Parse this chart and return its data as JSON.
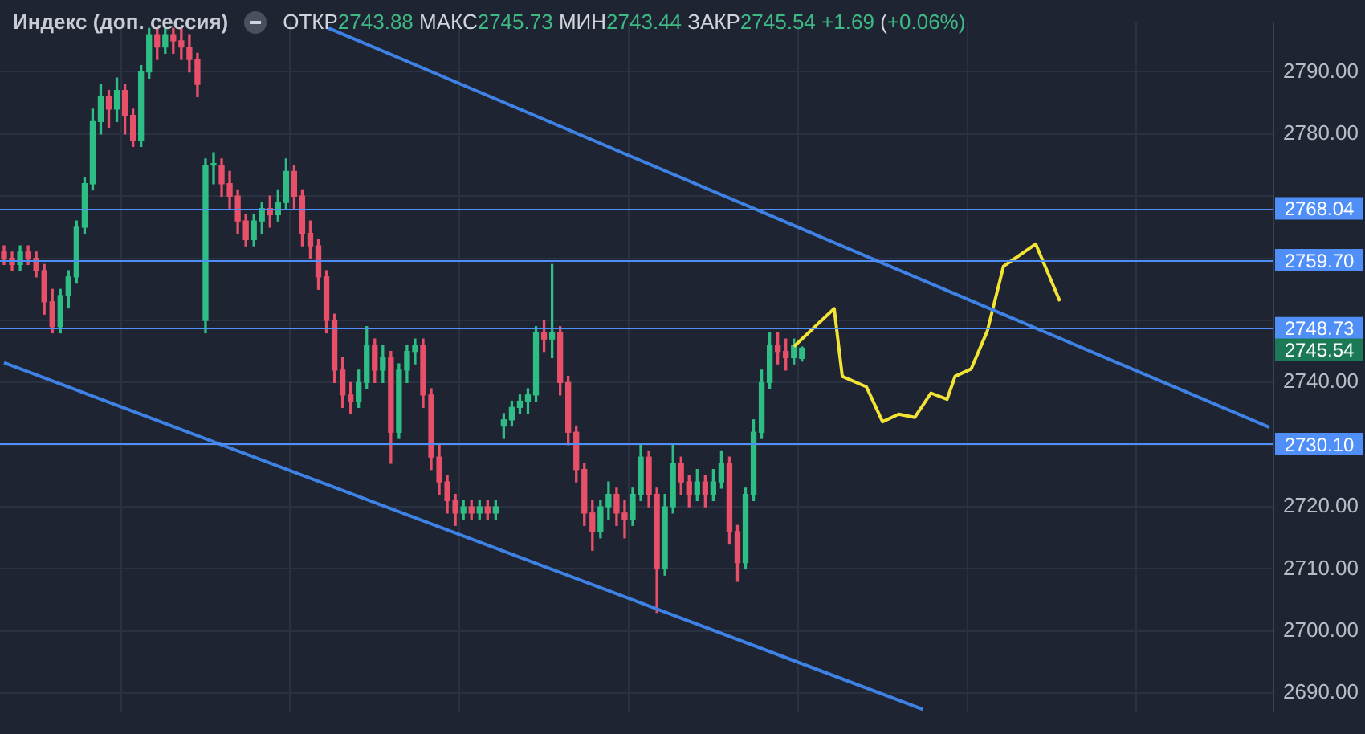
{
  "chart_data": {
    "type": "candlestick",
    "title": "Индекс (доп. сессия)",
    "subtitle": "ОТКР2743.88 МАКС2745.73 МИН2743.44 ЗАКР2745.54 +1.69 (+0.06%)",
    "categories": [
      null,
      null,
      null,
      null,
      null,
      null,
      null,
      null,
      null,
      null,
      null,
      null,
      null,
      null,
      null,
      null,
      null,
      null,
      null,
      null,
      null,
      null,
      null,
      null,
      null,
      null,
      null,
      null,
      null,
      null,
      null,
      null,
      null,
      null,
      null,
      null,
      null,
      null,
      null,
      null,
      null,
      null,
      null,
      null,
      null,
      null,
      null,
      null,
      null,
      null,
      null,
      null,
      null,
      null,
      null,
      null,
      null,
      null,
      null,
      null,
      null,
      null,
      null,
      null,
      null,
      null,
      null,
      null,
      null,
      null,
      null,
      null,
      null,
      null,
      null,
      null,
      null,
      null,
      null,
      null,
      null,
      null,
      null,
      null,
      null,
      null,
      null,
      null,
      null,
      null,
      null,
      null,
      null,
      null,
      null,
      null,
      null,
      null,
      null,
      null,
      null,
      null,
      null,
      null,
      null,
      null,
      null,
      null,
      null,
      null,
      null,
      null,
      null,
      null,
      null,
      null,
      null,
      null,
      null,
      null,
      null,
      null,
      null,
      null,
      null,
      null,
      null,
      null,
      null,
      null,
      null,
      null,
      null,
      null,
      null,
      null,
      null,
      null,
      null,
      null,
      null,
      null,
      null,
      null,
      null,
      null,
      null,
      null,
      null,
      null,
      null,
      null,
      null,
      null,
      null,
      null,
      null,
      null
    ],
    "ohlc": [
      [
        2761,
        2762,
        2759,
        2760
      ],
      [
        2760,
        2761,
        2758,
        2759
      ],
      [
        2759,
        2762,
        2758,
        2761
      ],
      [
        2761,
        2762,
        2759,
        2760
      ],
      [
        2760,
        2761,
        2757,
        2758
      ],
      [
        2758,
        2759,
        2751,
        2753
      ],
      [
        2753,
        2755,
        2748,
        2749
      ],
      [
        2749,
        2755,
        2748,
        2754
      ],
      [
        2754,
        2758,
        2752,
        2757
      ],
      [
        2757,
        2766,
        2756,
        2765
      ],
      [
        2765,
        2773,
        2764,
        2772
      ],
      [
        2772,
        2784,
        2771,
        2782
      ],
      [
        2782,
        2788,
        2780,
        2786
      ],
      [
        2786,
        2787,
        2781,
        2784
      ],
      [
        2784,
        2789,
        2782,
        2787
      ],
      [
        2787,
        2788,
        2780,
        2783
      ],
      [
        2783,
        2784,
        2778,
        2779
      ],
      [
        2779,
        2791,
        2778,
        2790
      ],
      [
        2790,
        2797,
        2789,
        2796
      ],
      [
        2796,
        2797,
        2792,
        2794
      ],
      [
        2794,
        2797,
        2793,
        2796
      ],
      [
        2796,
        2797,
        2793,
        2795
      ],
      [
        2795,
        2797,
        2792,
        2794
      ],
      [
        2794,
        2796,
        2790,
        2792
      ],
      [
        2792,
        2793,
        2786,
        2788
      ],
      [
        2750,
        2776,
        2748,
        2775
      ],
      [
        2775,
        2777,
        2772,
        2775
      ],
      [
        2775,
        2776,
        2770,
        2772
      ],
      [
        2772,
        2774,
        2768,
        2770
      ],
      [
        2770,
        2771,
        2764,
        2766
      ],
      [
        2766,
        2767,
        2762,
        2763
      ],
      [
        2763,
        2767,
        2762,
        2766
      ],
      [
        2766,
        2769,
        2764,
        2768
      ],
      [
        2768,
        2770,
        2765,
        2767
      ],
      [
        2767,
        2771,
        2766,
        2769
      ],
      [
        2769,
        2776,
        2768,
        2774
      ],
      [
        2774,
        2775,
        2768,
        2770
      ],
      [
        2770,
        2771,
        2762,
        2764
      ],
      [
        2764,
        2766,
        2760,
        2762
      ],
      [
        2762,
        2763,
        2755,
        2757
      ],
      [
        2757,
        2758,
        2748,
        2750
      ],
      [
        2750,
        2751,
        2740,
        2742
      ],
      [
        2742,
        2744,
        2736,
        2738
      ],
      [
        2738,
        2740,
        2735,
        2737
      ],
      [
        2737,
        2742,
        2736,
        2740
      ],
      [
        2740,
        2749,
        2739,
        2746
      ],
      [
        2746,
        2747,
        2740,
        2742
      ],
      [
        2742,
        2746,
        2740,
        2744
      ],
      [
        2744,
        2745,
        2727,
        2732
      ],
      [
        2732,
        2743,
        2731,
        2742
      ],
      [
        2742,
        2746,
        2740,
        2745
      ],
      [
        2745,
        2747,
        2743,
        2746
      ],
      [
        2746,
        2747,
        2736,
        2738
      ],
      [
        2738,
        2739,
        2726,
        2728
      ],
      [
        2728,
        2730,
        2722,
        2724
      ],
      [
        2724,
        2725,
        2719,
        2721
      ],
      [
        2721,
        2722,
        2717,
        2719
      ],
      [
        2719,
        2721,
        2718,
        2720
      ],
      [
        2720,
        2721,
        2718,
        2719
      ],
      [
        2719,
        2721,
        2718,
        2720
      ],
      [
        2720,
        2721,
        2718,
        2719
      ],
      [
        2719,
        2721,
        2718,
        2720
      ],
      [
        2733,
        2735,
        2731,
        2734
      ],
      [
        2734,
        2737,
        2733,
        2736
      ],
      [
        2736,
        2738,
        2735,
        2737
      ],
      [
        2737,
        2739,
        2735,
        2738
      ],
      [
        2738,
        2749,
        2737,
        2748
      ],
      [
        2748,
        2750,
        2745,
        2747
      ],
      [
        2747,
        2759,
        2744,
        2748
      ],
      [
        2748,
        2749,
        2738,
        2740
      ],
      [
        2740,
        2741,
        2730,
        2732
      ],
      [
        2732,
        2733,
        2724,
        2726
      ],
      [
        2726,
        2727,
        2717,
        2719
      ],
      [
        2719,
        2721,
        2713,
        2716
      ],
      [
        2716,
        2721,
        2715,
        2720
      ],
      [
        2720,
        2724,
        2718,
        2722
      ],
      [
        2722,
        2723,
        2717,
        2719
      ],
      [
        2719,
        2721,
        2715,
        2718
      ],
      [
        2718,
        2723,
        2717,
        2722
      ],
      [
        2722,
        2730,
        2721,
        2728
      ],
      [
        2728,
        2729,
        2720,
        2722
      ],
      [
        2722,
        2723,
        2703,
        2710
      ],
      [
        2710,
        2722,
        2709,
        2720
      ],
      [
        2720,
        2730,
        2719,
        2727
      ],
      [
        2727,
        2728,
        2722,
        2724
      ],
      [
        2724,
        2725,
        2720,
        2722
      ],
      [
        2722,
        2726,
        2721,
        2724
      ],
      [
        2724,
        2725,
        2720,
        2722
      ],
      [
        2722,
        2726,
        2721,
        2724
      ],
      [
        2724,
        2729,
        2723,
        2727
      ],
      [
        2727,
        2728,
        2714,
        2716
      ],
      [
        2716,
        2717,
        2708,
        2711
      ],
      [
        2711,
        2723,
        2710,
        2722
      ],
      [
        2722,
        2734,
        2721,
        2732
      ],
      [
        2732,
        2742,
        2731,
        2740
      ],
      [
        2740,
        2748,
        2739,
        2746
      ],
      [
        2746,
        2748,
        2743,
        2745
      ],
      [
        2745,
        2747,
        2742,
        2744
      ],
      [
        2744,
        2747,
        2743,
        2746
      ],
      [
        2743.88,
        2745.73,
        2743.44,
        2745.54
      ],
      null,
      null,
      null,
      null,
      null,
      null,
      null,
      null,
      null,
      null,
      null,
      null,
      null,
      null,
      null,
      null,
      null,
      null,
      null,
      null,
      null,
      null,
      null,
      null,
      null,
      null,
      null,
      null,
      null,
      null,
      null,
      null,
      null,
      null,
      null,
      null,
      null,
      null,
      null,
      null,
      null,
      null,
      null,
      null,
      null,
      null,
      null,
      null,
      null,
      null,
      null,
      null,
      null,
      null,
      null,
      null,
      null,
      null
    ],
    "colors": [
      "#e8506a",
      "#e8506a",
      "#2ebd85",
      "#e8506a",
      "#e8506a",
      "#e8506a",
      "#e8506a",
      "#2ebd85",
      "#2ebd85",
      "#2ebd85",
      "#2ebd85",
      "#2ebd85",
      "#2ebd85",
      "#e8506a",
      "#2ebd85",
      "#e8506a",
      "#e8506a",
      "#2ebd85",
      "#2ebd85",
      "#e8506a",
      "#2ebd85",
      "#e8506a",
      "#e8506a",
      "#e8506a",
      "#e8506a",
      "#2ebd85",
      "#2ebd85",
      "#e8506a",
      "#e8506a",
      "#e8506a",
      "#e8506a",
      "#2ebd85",
      "#2ebd85",
      "#e8506a",
      "#2ebd85",
      "#2ebd85",
      "#e8506a",
      "#e8506a",
      "#e8506a",
      "#e8506a",
      "#e8506a",
      "#e8506a",
      "#e8506a",
      "#e8506a",
      "#2ebd85",
      "#2ebd85",
      "#e8506a",
      "#2ebd85",
      "#e8506a",
      "#2ebd85",
      "#2ebd85",
      "#2ebd85",
      "#e8506a",
      "#e8506a",
      "#e8506a",
      "#e8506a",
      "#e8506a",
      "#2ebd85",
      "#e8506a",
      "#2ebd85",
      "#e8506a",
      "#2ebd85",
      "#2ebd85",
      "#2ebd85",
      "#2ebd85",
      "#2ebd85",
      "#2ebd85",
      "#e8506a",
      "#2ebd85",
      "#e8506a",
      "#e8506a",
      "#e8506a",
      "#e8506a",
      "#e8506a",
      "#2ebd85",
      "#2ebd85",
      "#e8506a",
      "#e8506a",
      "#2ebd85",
      "#2ebd85",
      "#e8506a",
      "#e8506a",
      "#2ebd85",
      "#2ebd85",
      "#e8506a",
      "#e8506a",
      "#2ebd85",
      "#e8506a",
      "#2ebd85",
      "#2ebd85",
      "#e8506a",
      "#e8506a",
      "#2ebd85",
      "#2ebd85",
      "#2ebd85",
      "#2ebd85",
      "#e8506a",
      "#e8506a",
      "#2ebd85",
      "#2ebd85",
      null,
      null,
      null,
      null,
      null,
      null,
      null,
      null,
      null,
      null,
      null,
      null,
      null,
      null,
      null,
      null,
      null,
      null,
      null,
      null,
      null,
      null,
      null,
      null,
      null,
      null,
      null,
      null,
      null,
      null,
      null,
      null,
      null,
      null,
      null,
      null,
      null,
      null,
      null,
      null,
      null,
      null,
      null,
      null,
      null,
      null,
      null,
      null,
      null,
      null,
      null,
      null,
      null,
      null,
      null,
      null,
      null,
      null
    ],
    "series": [
      {
        "type": "line",
        "color": "#3f82e6",
        "values": [
          null,
          null,
          null,
          null,
          null,
          null,
          null,
          null,
          null,
          null,
          null,
          null,
          null,
          null,
          null,
          null,
          null,
          null,
          null,
          null,
          null,
          null,
          null,
          null,
          null,
          null,
          null,
          null,
          null,
          null,
          null,
          null,
          null,
          null,
          null,
          null,
          null,
          null,
          null,
          null,
          2797.2,
          null,
          null,
          null,
          null,
          null,
          null,
          null,
          null,
          null,
          null,
          null,
          null,
          null,
          null,
          null,
          null,
          null,
          null,
          null,
          null,
          null,
          null,
          null,
          null,
          null,
          null,
          null,
          null,
          null,
          null,
          null,
          null,
          null,
          null,
          null,
          null,
          null,
          null,
          null,
          null,
          null,
          null,
          null,
          null,
          null,
          null,
          null,
          null,
          null,
          null,
          null,
          null,
          null,
          null,
          null,
          null,
          null,
          null,
          null,
          null,
          null,
          null,
          null,
          null,
          null,
          null,
          null,
          null,
          null,
          null,
          null,
          null,
          null,
          null,
          null,
          null,
          null,
          null,
          null,
          null,
          null,
          null,
          null,
          null,
          null,
          null,
          null,
          null,
          null,
          null,
          null,
          null,
          null,
          null,
          null,
          null,
          null,
          null,
          null,
          null,
          null,
          null,
          null,
          null,
          null,
          null,
          null,
          null,
          null,
          null,
          null,
          null,
          null,
          null,
          null,
          null,
          2732.8
        ]
      },
      {
        "type": "line",
        "color": "#3f82e6",
        "values": [
          2743.2,
          null,
          null,
          null,
          null,
          null,
          null,
          null,
          null,
          null,
          null,
          null,
          null,
          null,
          null,
          null,
          null,
          null,
          null,
          null,
          null,
          null,
          null,
          null,
          null,
          null,
          null,
          null,
          null,
          null,
          null,
          null,
          null,
          null,
          null,
          null,
          null,
          null,
          null,
          null,
          null,
          null,
          null,
          null,
          null,
          null,
          null,
          null,
          null,
          null,
          null,
          null,
          null,
          null,
          null,
          null,
          null,
          null,
          null,
          null,
          null,
          null,
          null,
          null,
          null,
          null,
          null,
          null,
          null,
          null,
          null,
          null,
          null,
          null,
          null,
          null,
          null,
          null,
          null,
          null,
          null,
          null,
          null,
          null,
          null,
          null,
          null,
          null,
          null,
          null,
          null,
          null,
          null,
          null,
          null,
          null,
          null,
          null,
          null,
          null,
          null,
          null,
          null,
          null,
          null,
          null,
          null,
          null,
          null,
          null,
          null,
          null,
          null,
          null,
          2687.4,
          null,
          null,
          null,
          null,
          null,
          null,
          null,
          null,
          null,
          null,
          null,
          null,
          null,
          null,
          null,
          null,
          null,
          null,
          null,
          null,
          null,
          null,
          null,
          null,
          null,
          null,
          null,
          null,
          null,
          null,
          null,
          null,
          null,
          null,
          null,
          null,
          null,
          null,
          null,
          null,
          null,
          null,
          null
        ]
      },
      {
        "type": "line",
        "color": "#f2e335",
        "values": [
          null,
          null,
          null,
          null,
          null,
          null,
          null,
          null,
          null,
          null,
          null,
          null,
          null,
          null,
          null,
          null,
          null,
          null,
          null,
          null,
          null,
          null,
          null,
          null,
          null,
          null,
          null,
          null,
          null,
          null,
          null,
          null,
          null,
          null,
          null,
          null,
          null,
          null,
          null,
          null,
          null,
          null,
          null,
          null,
          null,
          null,
          null,
          null,
          null,
          null,
          null,
          null,
          null,
          null,
          null,
          null,
          null,
          null,
          null,
          null,
          null,
          null,
          null,
          null,
          null,
          null,
          null,
          null,
          null,
          null,
          null,
          null,
          null,
          null,
          null,
          null,
          null,
          null,
          null,
          null,
          null,
          null,
          null,
          null,
          null,
          null,
          null,
          null,
          null,
          null,
          null,
          null,
          null,
          null,
          null,
          null,
          null,
          null,
          2745.8,
          null,
          null,
          null,
          null,
          2751.9,
          2741.0,
          null,
          null,
          2739.3,
          null,
          2733.7,
          null,
          2734.9,
          null,
          2734.4,
          null,
          2738.3,
          null,
          2737.3,
          2741.0,
          null,
          2742.2,
          null,
          2748.3,
          null,
          2758.7,
          null,
          null,
          null,
          2762.3,
          null,
          null,
          2753.1,
          null,
          null,
          null,
          null,
          null,
          null,
          null,
          null,
          null,
          null,
          null,
          null,
          null,
          null,
          null,
          null,
          null,
          null,
          null,
          null,
          null,
          null,
          null,
          null,
          null,
          null
        ]
      }
    ],
    "ylim": [
      2687,
      2798
    ],
    "yticks": [
      {
        "value": 2690,
        "label": "2690.00"
      },
      {
        "value": 2700,
        "label": "2700.00"
      },
      {
        "value": 2710,
        "label": "2710.00"
      },
      {
        "value": 2720,
        "label": "2720.00"
      },
      {
        "value": 2730,
        "label": null
      },
      {
        "value": 2740,
        "label": "2740.00"
      },
      {
        "value": 2750,
        "label": null
      },
      {
        "value": 2760,
        "label": null
      },
      {
        "value": 2770,
        "label": null
      },
      {
        "value": 2780,
        "label": "2780.00"
      },
      {
        "value": 2790,
        "label": "2790.00"
      }
    ],
    "ref_lines": [
      {
        "axis": "y",
        "value": 2768.04,
        "label": "2768.04",
        "color": "#4f8ff7"
      },
      {
        "axis": "y",
        "value": 2759.7,
        "label": "2759.70",
        "color": "#4f8ff7"
      },
      {
        "axis": "y",
        "value": 2748.73,
        "label": "2748.73",
        "color": "#4f8ff7"
      },
      {
        "axis": "y",
        "value": 2730.1,
        "label": "2730.10",
        "color": "#4f8ff7"
      }
    ],
    "annotations": [
      "2745.54"
    ],
    "grid": true,
    "legend": false,
    "tick_labels": "y",
    "marker": "none"
  }
}
